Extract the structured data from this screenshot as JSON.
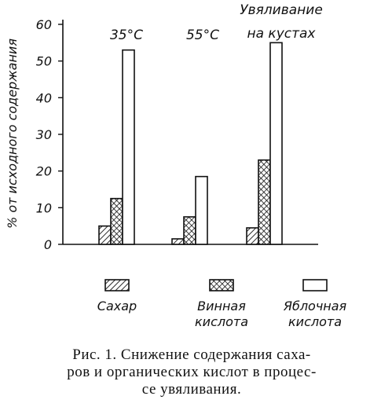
{
  "chart_data": {
    "type": "bar",
    "ylabel": "% от исходного содержания",
    "ylim": [
      0,
      60
    ],
    "yticks": [
      "0",
      "10",
      "20",
      "30",
      "40",
      "50",
      "60"
    ],
    "categories": [
      "35°C",
      "55°C",
      "Увяливание на кустах"
    ],
    "category_labels": [
      [
        "35°C"
      ],
      [
        "55°C"
      ],
      [
        "Увяливание",
        "на кустах"
      ]
    ],
    "series": [
      {
        "name": "Сахар",
        "name_lines": [
          "Сахар"
        ],
        "values": [
          5,
          1.5,
          4.5
        ],
        "pattern": "hatch"
      },
      {
        "name": "Винная кислота",
        "name_lines": [
          "Винная",
          "кислота"
        ],
        "values": [
          12.5,
          7.5,
          23
        ],
        "pattern": "crosshatch"
      },
      {
        "name": "Яблочная кислота",
        "name_lines": [
          "Яблочная",
          "кислота"
        ],
        "values": [
          53,
          18.5,
          55
        ],
        "pattern": "empty"
      }
    ],
    "legend": "bottom",
    "grid": false
  },
  "caption": {
    "lines": [
      "Рис. 1. Снижение содержания саха-",
      "ров и органических кислот в процес-",
      "се увяливания."
    ]
  },
  "colors": {
    "ink": "#111111",
    "paper": "#ffffff"
  }
}
